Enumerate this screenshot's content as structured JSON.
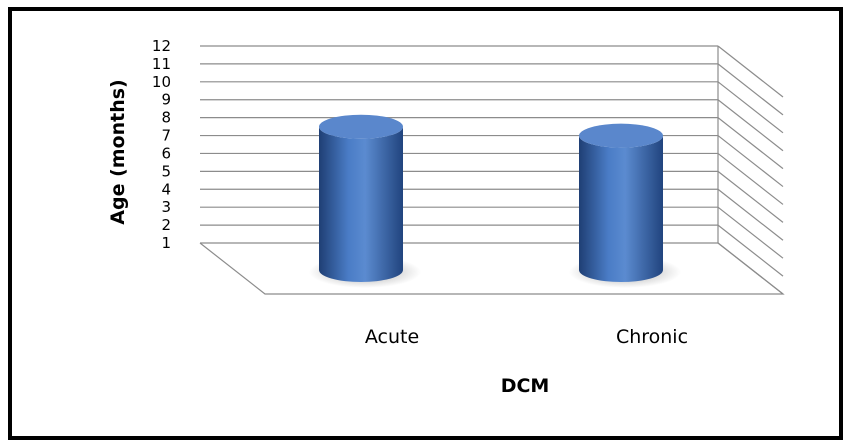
{
  "chart_data": {
    "type": "bar",
    "style": "3d-cylinder",
    "categories": [
      "Acute",
      "Chronic"
    ],
    "values": [
      9.0,
      8.5
    ],
    "xlabel": "DCM",
    "ylabel": "Age (months)",
    "yticks": [
      "1",
      "2",
      "3",
      "4",
      "5",
      "6",
      "7",
      "8",
      "9",
      "10",
      "11",
      "12"
    ],
    "ylim": [
      1,
      12
    ],
    "grid": true,
    "legend": "none",
    "colors": {
      "bar_light": "#6f9ad6",
      "bar_mid": "#3d6fb8",
      "bar_dark": "#1f3f74",
      "bar_top": "#5a87cc",
      "grid": "#8c8c8c"
    }
  }
}
